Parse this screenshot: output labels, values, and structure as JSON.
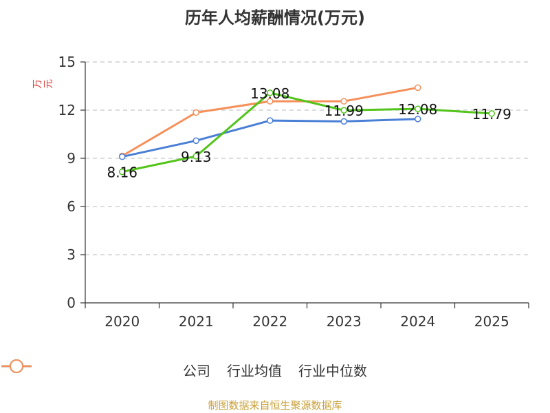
{
  "chart_data": {
    "type": "line",
    "title": "历年人均薪酬情况(万元)",
    "ylabel": "万元",
    "xlabel": "",
    "categories": [
      "2020",
      "2021",
      "2022",
      "2023",
      "2024",
      "2025"
    ],
    "ylim": [
      0,
      15
    ],
    "yticks": [
      0,
      3,
      6,
      9,
      12,
      15
    ],
    "grid": true,
    "legend_position": "bottom",
    "series": [
      {
        "name": "公司",
        "color": "#52c41a",
        "values": [
          8.16,
          9.13,
          13.08,
          11.99,
          12.08,
          11.79
        ],
        "labels": [
          "8.16",
          "9.13",
          "13.08",
          "11.99",
          "12.08",
          "11.79"
        ]
      },
      {
        "name": "行业均值",
        "color": "#4a7fd6",
        "values": [
          9.1,
          10.1,
          11.35,
          11.3,
          11.45,
          null
        ]
      },
      {
        "name": "行业中位数",
        "color": "#f5905a",
        "values": [
          9.15,
          11.85,
          12.55,
          12.55,
          13.4,
          null
        ]
      }
    ]
  },
  "footer": {
    "source": "制图数据来自恒生聚源数据库"
  }
}
